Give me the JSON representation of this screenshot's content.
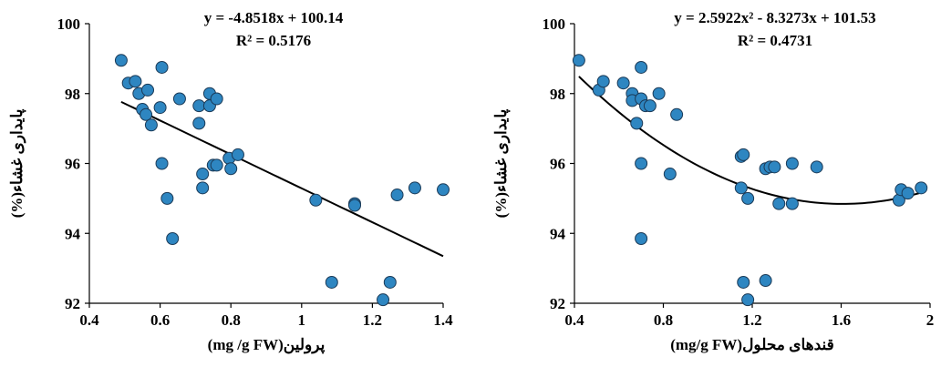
{
  "chart_data": [
    {
      "type": "scatter",
      "xlabel": "پرولین(mg /g FW)",
      "ylabel": "پایداری غشاء(%)",
      "xlim": [
        0.4,
        1.4
      ],
      "ylim": [
        92,
        100
      ],
      "xticks": [
        "0.4",
        "0.6",
        "0.8",
        "1",
        "1.2",
        "1.4"
      ],
      "yticks": [
        "92",
        "94",
        "96",
        "98",
        "100"
      ],
      "equation": "y = -4.8518x + 100.14",
      "r2": "R² = 0.5176",
      "trend": {
        "kind": "linear",
        "coef": [
          100.14,
          -4.8518
        ],
        "x_range": [
          0.49,
          1.4
        ]
      },
      "marker_color": "#2e86c1",
      "points": [
        [
          0.49,
          98.95
        ],
        [
          0.51,
          98.3
        ],
        [
          0.53,
          98.35
        ],
        [
          0.54,
          98.0
        ],
        [
          0.55,
          97.55
        ],
        [
          0.56,
          97.4
        ],
        [
          0.565,
          98.1
        ],
        [
          0.575,
          97.1
        ],
        [
          0.6,
          97.6
        ],
        [
          0.605,
          98.75
        ],
        [
          0.605,
          96.0
        ],
        [
          0.62,
          95.0
        ],
        [
          0.635,
          93.85
        ],
        [
          0.655,
          97.85
        ],
        [
          0.71,
          97.15
        ],
        [
          0.71,
          97.65
        ],
        [
          0.72,
          95.7
        ],
        [
          0.72,
          95.3
        ],
        [
          0.74,
          98.0
        ],
        [
          0.74,
          97.65
        ],
        [
          0.75,
          95.95
        ],
        [
          0.76,
          95.95
        ],
        [
          0.76,
          97.85
        ],
        [
          0.795,
          96.15
        ],
        [
          0.8,
          95.85
        ],
        [
          0.82,
          96.25
        ],
        [
          1.04,
          94.95
        ],
        [
          1.085,
          92.6
        ],
        [
          1.15,
          94.85
        ],
        [
          1.15,
          94.8
        ],
        [
          1.23,
          92.1
        ],
        [
          1.25,
          92.6
        ],
        [
          1.27,
          95.1
        ],
        [
          1.32,
          95.3
        ],
        [
          1.4,
          95.25
        ]
      ]
    },
    {
      "type": "scatter",
      "xlabel": "قندهای محلول(mg/g FW)",
      "ylabel": "پایداری غشاء(%)",
      "xlim": [
        0.4,
        2.0
      ],
      "ylim": [
        92,
        100
      ],
      "xticks": [
        "0.4",
        "0.8",
        "1.2",
        "1.6",
        "2"
      ],
      "yticks": [
        "92",
        "94",
        "96",
        "98",
        "100"
      ],
      "equation": "y = 2.5922x² - 8.3273x + 101.53",
      "r2": "R² = 0.4731",
      "trend": {
        "kind": "quadratic",
        "coef": [
          101.53,
          -8.3273,
          2.5922
        ],
        "x_range": [
          0.42,
          1.97
        ]
      },
      "marker_color": "#2e86c1",
      "points": [
        [
          0.42,
          98.95
        ],
        [
          0.51,
          98.1
        ],
        [
          0.53,
          98.35
        ],
        [
          0.62,
          98.3
        ],
        [
          0.66,
          98.0
        ],
        [
          0.66,
          97.8
        ],
        [
          0.68,
          97.15
        ],
        [
          0.7,
          98.75
        ],
        [
          0.7,
          97.85
        ],
        [
          0.72,
          97.65
        ],
        [
          0.74,
          97.65
        ],
        [
          0.78,
          98.0
        ],
        [
          0.86,
          97.4
        ],
        [
          0.83,
          95.7
        ],
        [
          0.7,
          96.0
        ],
        [
          0.7,
          93.85
        ],
        [
          1.15,
          96.2
        ],
        [
          1.16,
          96.25
        ],
        [
          1.15,
          95.3
        ],
        [
          1.18,
          95.0
        ],
        [
          1.26,
          95.85
        ],
        [
          1.28,
          95.9
        ],
        [
          1.3,
          95.9
        ],
        [
          1.32,
          94.85
        ],
        [
          1.38,
          94.85
        ],
        [
          1.38,
          96.0
        ],
        [
          1.49,
          95.9
        ],
        [
          1.16,
          92.6
        ],
        [
          1.18,
          92.1
        ],
        [
          1.26,
          92.65
        ],
        [
          1.86,
          94.95
        ],
        [
          1.87,
          95.25
        ],
        [
          1.9,
          95.15
        ],
        [
          1.96,
          95.3
        ]
      ]
    }
  ]
}
